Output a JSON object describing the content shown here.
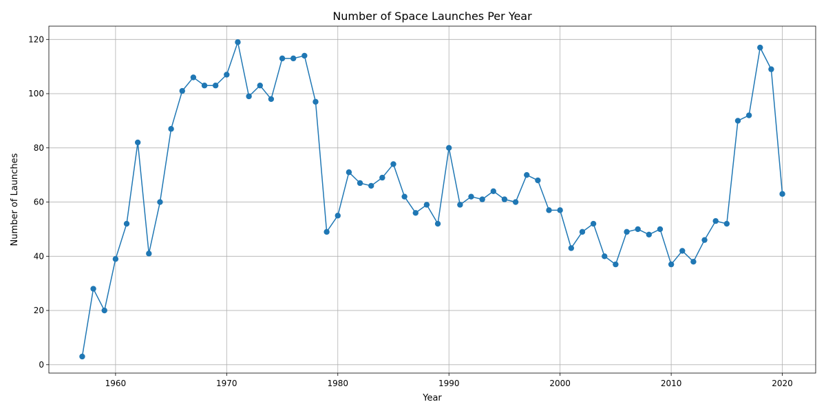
{
  "chart_data": {
    "type": "line",
    "title": "Number of Space Launches Per Year",
    "xlabel": "Year",
    "ylabel": "Number of Launches",
    "xlim": [
      1954,
      2023
    ],
    "ylim": [
      -3.1,
      124.9
    ],
    "xticks": [
      1960,
      1970,
      1980,
      1990,
      2000,
      2010,
      2020
    ],
    "yticks": [
      0,
      20,
      40,
      60,
      80,
      100,
      120
    ],
    "grid": true,
    "legend": "none",
    "series": [
      {
        "color": "#1f77b4",
        "marker": "circle",
        "x": [
          1957,
          1958,
          1959,
          1960,
          1961,
          1962,
          1963,
          1964,
          1965,
          1966,
          1967,
          1968,
          1969,
          1970,
          1971,
          1972,
          1973,
          1974,
          1975,
          1976,
          1977,
          1978,
          1979,
          1980,
          1981,
          1982,
          1983,
          1984,
          1985,
          1986,
          1987,
          1988,
          1989,
          1990,
          1991,
          1992,
          1993,
          1994,
          1995,
          1996,
          1997,
          1998,
          1999,
          2000,
          2001,
          2002,
          2003,
          2004,
          2005,
          2006,
          2007,
          2008,
          2009,
          2010,
          2011,
          2012,
          2013,
          2014,
          2015,
          2016,
          2017,
          2018,
          2019,
          2020
        ],
        "y": [
          3,
          28,
          20,
          39,
          52,
          82,
          41,
          60,
          87,
          101,
          106,
          103,
          103,
          107,
          119,
          99,
          103,
          98,
          113,
          113,
          114,
          97,
          49,
          55,
          71,
          67,
          66,
          69,
          74,
          62,
          56,
          59,
          52,
          80,
          59,
          62,
          61,
          64,
          61,
          60,
          70,
          68,
          57,
          57,
          43,
          49,
          52,
          40,
          37,
          49,
          50,
          48,
          50,
          37,
          42,
          38,
          46,
          53,
          52,
          90,
          92,
          117,
          109,
          63
        ]
      }
    ]
  }
}
